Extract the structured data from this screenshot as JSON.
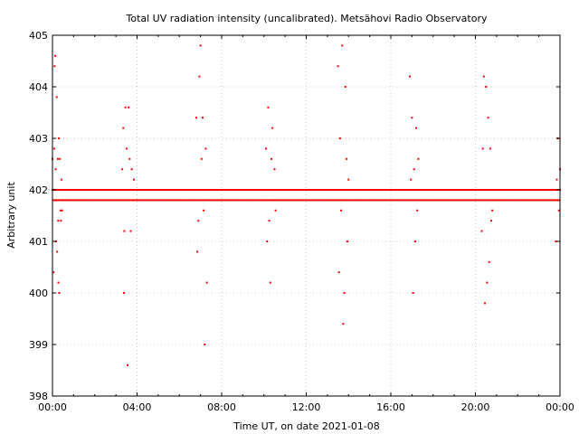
{
  "chart_data": {
    "type": "scatter",
    "title": "Total UV radiation intensity (uncalibrated). Metsähovi Radio Observatory",
    "xlabel": "Time UT, on date 2021-01-08",
    "ylabel": "Arbitrary unit",
    "xlim": [
      0,
      24
    ],
    "ylim": [
      398,
      405
    ],
    "x_ticks": [
      "00:00",
      "04:00",
      "08:00",
      "12:00",
      "16:00",
      "20:00",
      "00:00"
    ],
    "y_ticks": [
      "398",
      "399",
      "400",
      "401",
      "402",
      "403",
      "404",
      "405"
    ],
    "grid": true,
    "marker_color": "#ff0000",
    "series": [
      {
        "baseline_levels": [
          402.0,
          401.8
        ],
        "x": [
          0.0,
          0.05,
          0.08,
          0.1,
          0.13,
          0.15,
          0.17,
          0.2,
          0.22,
          0.25,
          0.27,
          0.28,
          0.3,
          0.32,
          0.35,
          0.38,
          0.4,
          0.42,
          0.45,
          0.5,
          3.3,
          3.35,
          3.38,
          3.4,
          3.45,
          3.5,
          3.55,
          3.6,
          3.65,
          3.7,
          3.75,
          3.8,
          3.85,
          6.8,
          6.85,
          6.9,
          6.95,
          7.0,
          7.05,
          7.1,
          7.15,
          7.2,
          7.25,
          7.3,
          10.1,
          10.15,
          10.2,
          10.25,
          10.3,
          10.35,
          10.4,
          10.45,
          10.5,
          10.55,
          10.6,
          13.5,
          13.55,
          13.6,
          13.65,
          13.7,
          13.75,
          13.8,
          13.85,
          13.9,
          13.95,
          14.0,
          16.9,
          16.95,
          17.0,
          17.05,
          17.1,
          17.15,
          17.2,
          17.25,
          17.3,
          20.3,
          20.35,
          20.4,
          20.45,
          20.5,
          20.55,
          20.6,
          20.65,
          20.7,
          20.75,
          20.8,
          23.8,
          23.85,
          23.9,
          23.95,
          24.0
        ],
        "y": [
          402.6,
          400.4,
          402.8,
          404.4,
          404.6,
          402.4,
          401.0,
          403.8,
          400.8,
          402.6,
          401.4,
          400.2,
          403.0,
          400.0,
          402.6,
          401.6,
          401.4,
          402.2,
          401.6,
          401.8,
          402.4,
          403.2,
          400.0,
          401.2,
          403.6,
          402.8,
          398.6,
          403.6,
          402.6,
          401.2,
          402.4,
          401.8,
          402.2,
          403.4,
          400.8,
          401.4,
          404.2,
          404.8,
          402.6,
          403.4,
          401.6,
          399.0,
          402.8,
          400.2,
          402.8,
          401.0,
          403.6,
          401.4,
          400.2,
          402.6,
          403.2,
          401.8,
          402.4,
          401.6,
          402.0,
          404.4,
          400.4,
          403.0,
          401.6,
          404.8,
          399.4,
          400.0,
          404.0,
          402.6,
          401.0,
          402.2,
          404.2,
          402.2,
          403.4,
          400.0,
          402.4,
          401.0,
          403.2,
          401.6,
          402.6,
          401.2,
          402.8,
          404.2,
          399.8,
          404.0,
          400.2,
          403.4,
          400.6,
          402.8,
          401.4,
          401.6,
          401.0,
          402.2,
          403.0,
          401.6,
          402.4
        ]
      }
    ]
  }
}
